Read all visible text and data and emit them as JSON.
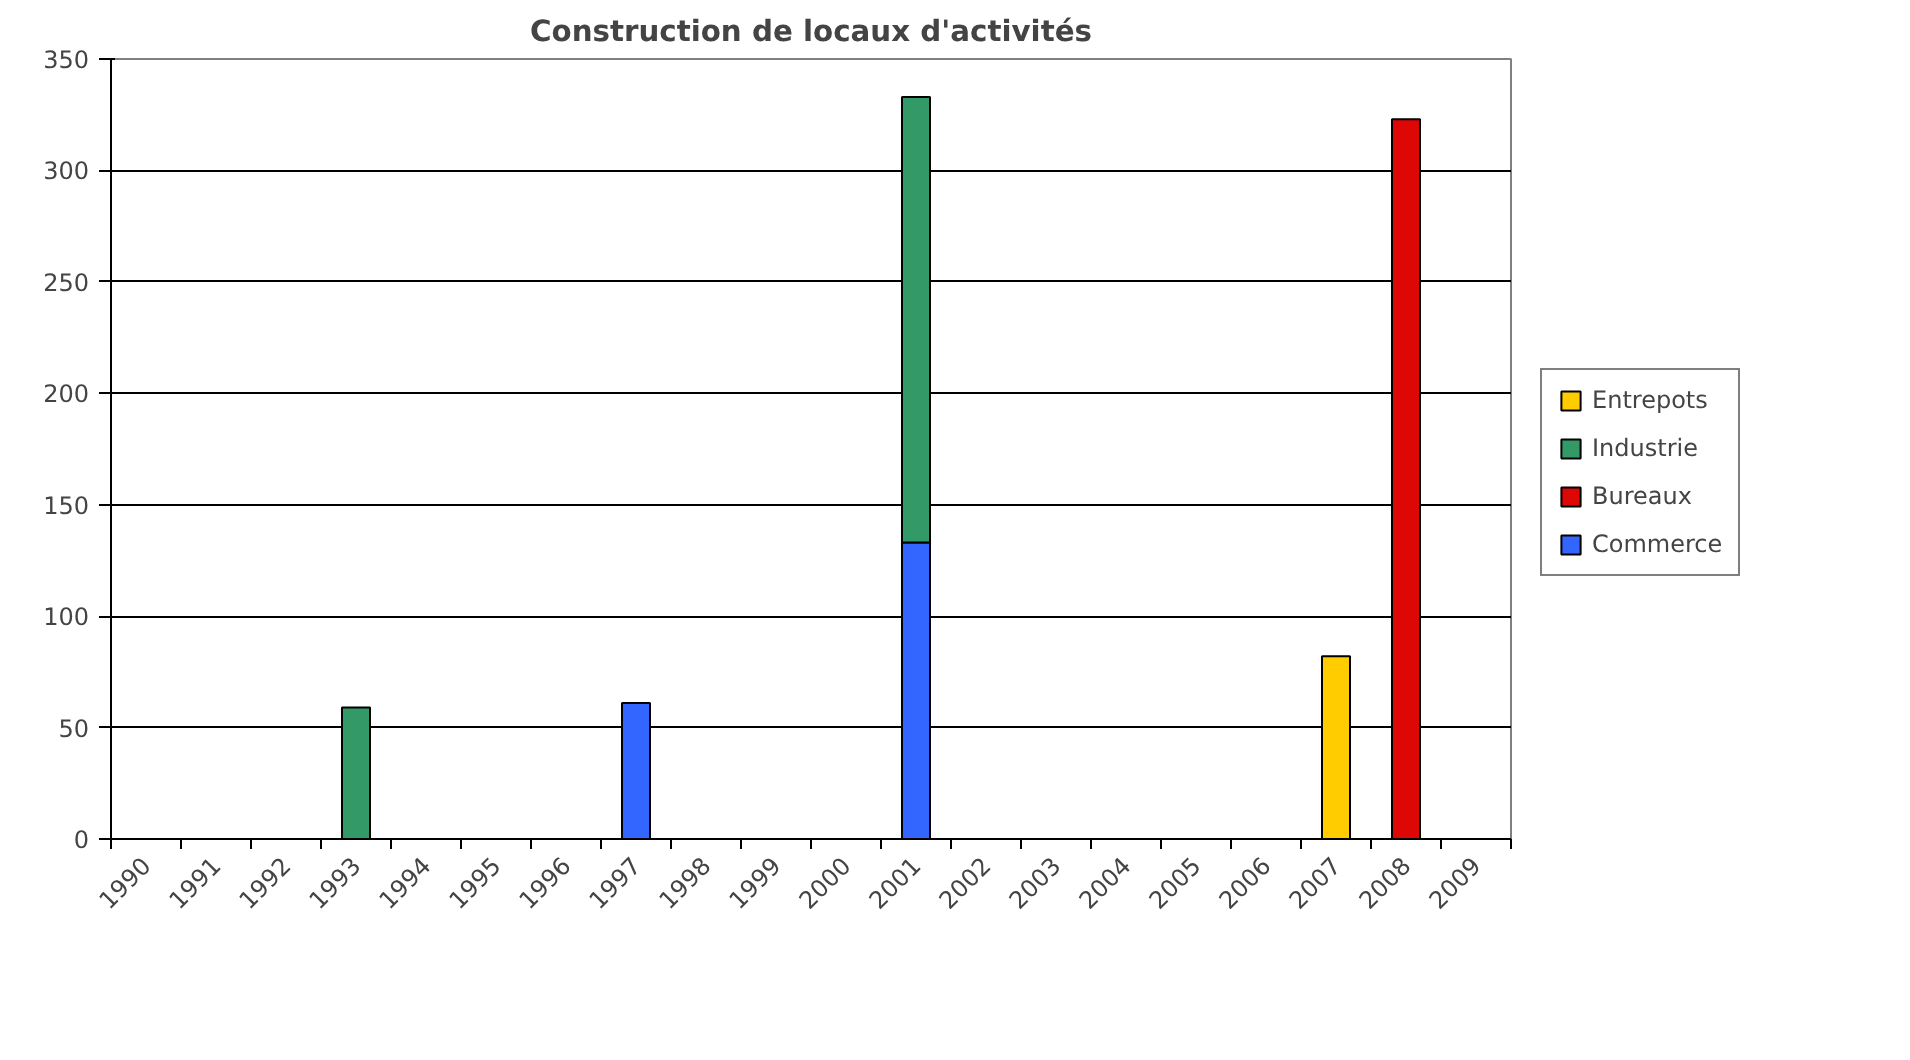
{
  "chart_data": {
    "type": "bar",
    "title": "Construction de locaux d'activités",
    "stacked": true,
    "categories": [
      "1990",
      "1991",
      "1992",
      "1993",
      "1994",
      "1995",
      "1996",
      "1997",
      "1998",
      "1999",
      "2000",
      "2001",
      "2002",
      "2003",
      "2004",
      "2005",
      "2006",
      "2007",
      "2008",
      "2009"
    ],
    "series": [
      {
        "name": "Commerce",
        "color": "#3366ff",
        "values": [
          0,
          0,
          0,
          0,
          0,
          0,
          0,
          61,
          0,
          0,
          0,
          133,
          0,
          0,
          0,
          0,
          0,
          0,
          0,
          0
        ]
      },
      {
        "name": "Bureaux",
        "color": "#dd0806",
        "values": [
          0,
          0,
          0,
          0,
          0,
          0,
          0,
          0,
          0,
          0,
          0,
          0,
          0,
          0,
          0,
          0,
          0,
          0,
          323,
          0
        ]
      },
      {
        "name": "Industrie",
        "color": "#339966",
        "values": [
          0,
          0,
          0,
          59,
          0,
          0,
          0,
          0,
          0,
          0,
          0,
          200,
          0,
          0,
          0,
          0,
          0,
          0,
          0,
          0
        ]
      },
      {
        "name": "Entrepots",
        "color": "#ffcc00",
        "values": [
          0,
          0,
          0,
          0,
          0,
          0,
          0,
          0,
          0,
          0,
          0,
          0,
          0,
          0,
          0,
          0,
          0,
          82,
          0,
          0
        ]
      }
    ],
    "ylim": [
      0,
      350
    ],
    "yticks": [
      0,
      50,
      100,
      150,
      200,
      250,
      300,
      350
    ],
    "grid": "y",
    "legend": "right"
  }
}
